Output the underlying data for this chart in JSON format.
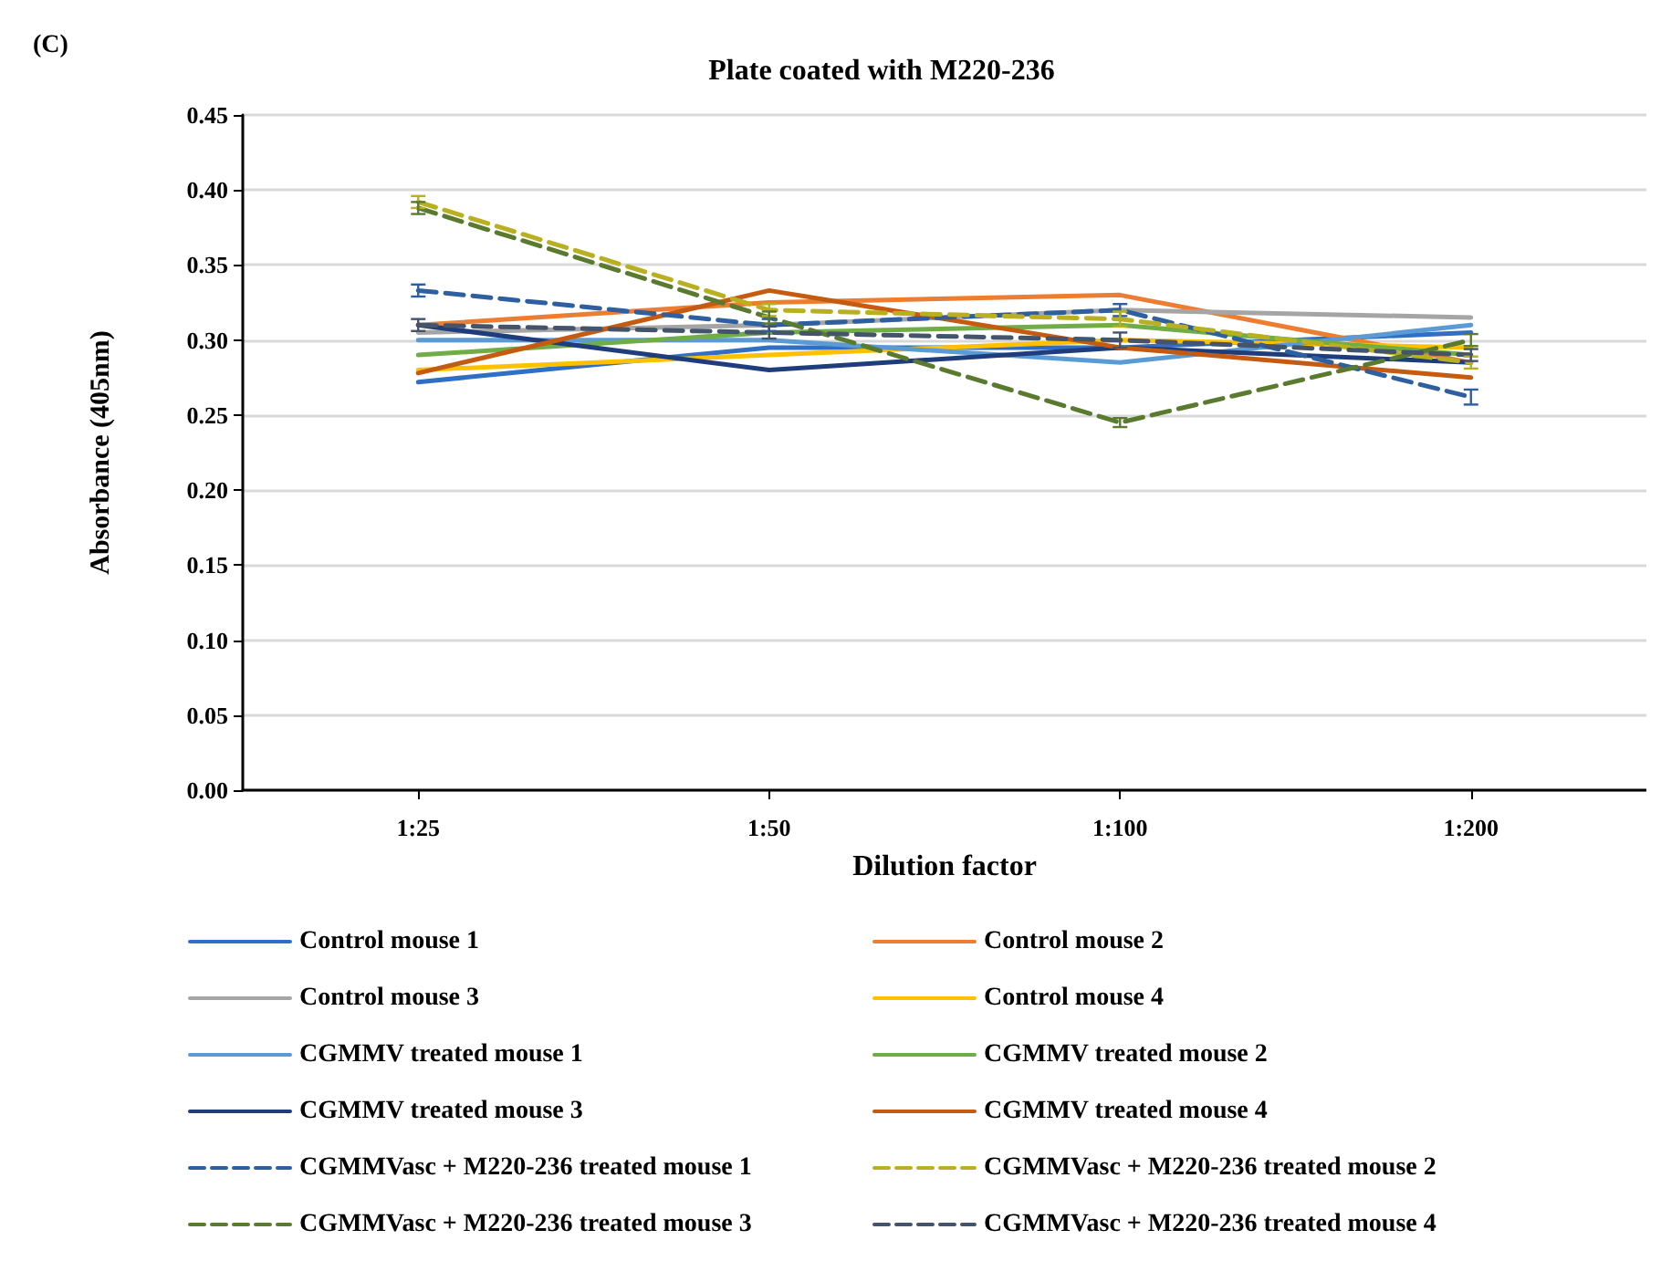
{
  "chart_data": {
    "type": "line",
    "title": "Plate coated with M220-236",
    "xlabel": "Dilution factor",
    "ylabel": "Absorbance (405nm)",
    "annotations": [
      "(C)"
    ],
    "categories": [
      "1:25",
      "1:50",
      "1:100",
      "1:200"
    ],
    "ylim": [
      0,
      0.45
    ],
    "yticks": [
      {
        "value": 0,
        "label": "0.00"
      },
      {
        "value": 0.05,
        "label": "0.05"
      },
      {
        "value": 0.1,
        "label": "0.10"
      },
      {
        "value": 0.15,
        "label": "0.15"
      },
      {
        "value": 0.2,
        "label": "0.20"
      },
      {
        "value": 0.25,
        "label": "0.25"
      },
      {
        "value": 0.3,
        "label": "0.30"
      },
      {
        "value": 0.35,
        "label": "0.35"
      },
      {
        "value": 0.4,
        "label": "0.40"
      },
      {
        "value": 0.45,
        "label": "0.45"
      }
    ],
    "grid": "y",
    "legend": "bottom",
    "marker": "none",
    "series": [
      {
        "name": "Control mouse 1",
        "color": "#2f6fc4",
        "values": [
          0.272,
          0.295,
          0.295,
          0.305
        ]
      },
      {
        "name": "Control mouse 2",
        "color": "#ed7d31",
        "values": [
          0.31,
          0.325,
          0.33,
          0.285
        ]
      },
      {
        "name": "Control mouse 3",
        "color": "#a5a5a5",
        "values": [
          0.305,
          0.31,
          0.32,
          0.315
        ]
      },
      {
        "name": "Control mouse 4",
        "color": "#ffc000",
        "values": [
          0.28,
          0.29,
          0.3,
          0.295
        ]
      },
      {
        "name": "CGMMV treated mouse 1",
        "color": "#5b9bd5",
        "values": [
          0.3,
          0.3,
          0.285,
          0.31
        ]
      },
      {
        "name": "CGMMV treated mouse 2",
        "color": "#70ad47",
        "values": [
          0.29,
          0.305,
          0.31,
          0.29
        ]
      },
      {
        "name": "CGMMV treated mouse 3",
        "color": "#1f3d7a",
        "values": [
          0.31,
          0.28,
          0.295,
          0.285
        ]
      },
      {
        "name": "CGMMV treated mouse 4",
        "color": "#c55a11",
        "values": [
          0.278,
          0.333,
          0.295,
          0.275
        ]
      },
      {
        "name": "CGMMVasc + M220-236 treated mouse 1",
        "color": "#2e5fa0",
        "line_style": "dashed",
        "values": [
          0.333,
          0.31,
          0.32,
          0.262
        ],
        "errors": [
          0.004,
          0.004,
          0.004,
          0.005
        ]
      },
      {
        "name": "CGMMVasc + M220-236 treated mouse 2",
        "color": "#b8b020",
        "line_style": "dashed",
        "values": [
          0.392,
          0.32,
          0.314,
          0.285
        ],
        "errors": [
          0.004,
          0.004,
          0.005,
          0.004
        ]
      },
      {
        "name": "CGMMVasc + M220-236 treated mouse 3",
        "color": "#5a7a30",
        "line_style": "dashed",
        "values": [
          0.388,
          0.315,
          0.245,
          0.3
        ],
        "errors": [
          0.004,
          0.004,
          0.003,
          0.004
        ]
      },
      {
        "name": "CGMMVasc + M220-236 treated mouse 4",
        "color": "#44546a",
        "line_style": "dashed",
        "values": [
          0.31,
          0.305,
          0.3,
          0.29
        ],
        "errors": [
          0.004,
          0.004,
          0.005,
          0.004
        ]
      }
    ]
  }
}
